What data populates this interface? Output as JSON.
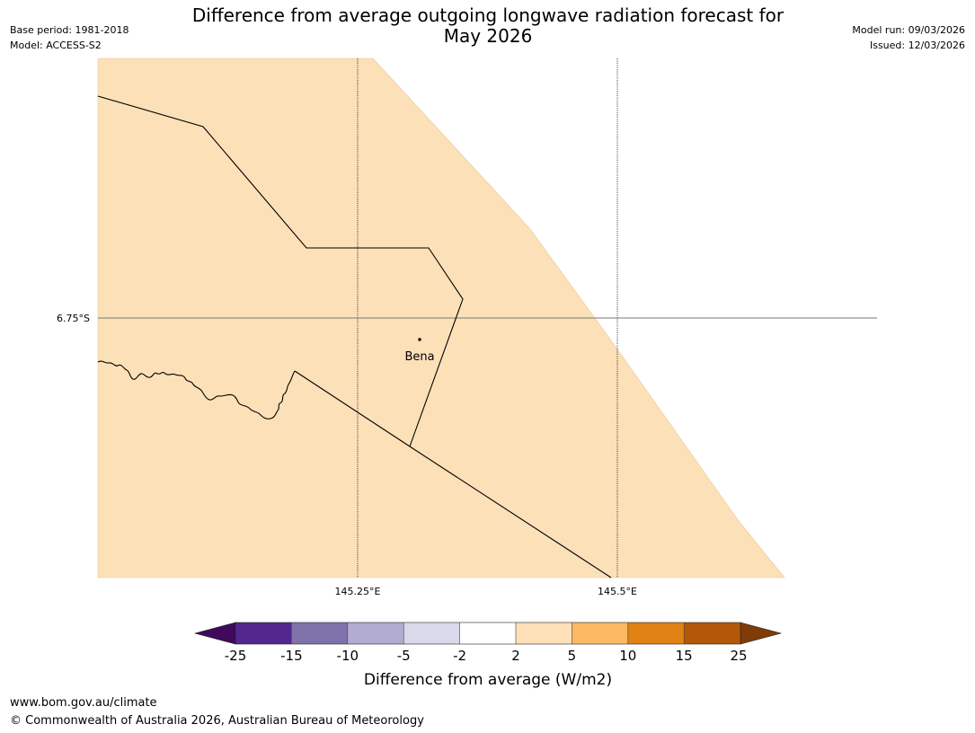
{
  "header": {
    "base_period": "Base period: 1981-2018",
    "model": "Model: ACCESS-S2",
    "model_run": "Model run: 09/03/2026",
    "issued": "Issued: 12/03/2026",
    "title_line1": "Difference from average outgoing longwave radiation forecast for",
    "title_line2": "May 2026"
  },
  "map": {
    "lat_label": "6.75°S",
    "lon_labels": [
      "145.25°E",
      "145.5°E"
    ],
    "place_label": "Bena",
    "fill_color": "#fce0b8"
  },
  "colorbar": {
    "title": "Difference from average (W/m2)",
    "ticks": [
      "-25",
      "-15",
      "-10",
      "-5",
      "-2",
      "2",
      "5",
      "10",
      "15",
      "25"
    ],
    "colors": [
      "#3f0a5c",
      "#54278f",
      "#8073ac",
      "#b2abd2",
      "#d8daeb",
      "#ffffff",
      "#fde0b8",
      "#fdb863",
      "#e08214",
      "#b35806",
      "#7f3b08"
    ]
  },
  "footer": {
    "url": "www.bom.gov.au/climate",
    "copyright": "© Commonwealth of Australia 2026, Australian Bureau of Meteorology"
  }
}
